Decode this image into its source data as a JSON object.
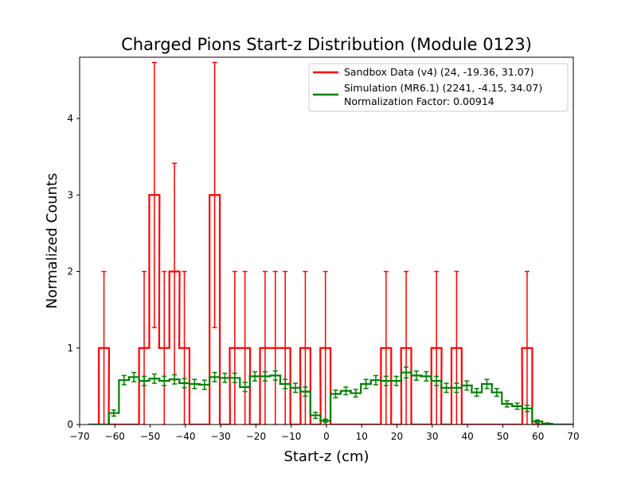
{
  "chart_data": {
    "type": "histogram-step",
    "title": "Charged Pions Start-z Distribution (Module 0123)",
    "xlabel": "Start-z (cm)",
    "ylabel": "Normalized Counts",
    "xlim": [
      -70,
      70
    ],
    "ylim": [
      0,
      4.8
    ],
    "xticks": [
      "−70",
      "−60",
      "−50",
      "−40",
      "−30",
      "−20",
      "−10",
      "0",
      "10",
      "20",
      "30",
      "40",
      "50",
      "60",
      "70"
    ],
    "xtick_values": [
      -70,
      -60,
      -50,
      -40,
      -30,
      -20,
      -10,
      0,
      10,
      20,
      30,
      40,
      50,
      60,
      70
    ],
    "yticks": [
      "0",
      "1",
      "2",
      "3",
      "4"
    ],
    "ytick_values": [
      0,
      1,
      2,
      3,
      4
    ],
    "grid": false,
    "legend_position": "top-right",
    "legend": {
      "line1": "Sandbox Data (v4) (24, -19.36, 31.07)",
      "line2": "Simulation (MR6.1) (2241, -4.15, 34.07)",
      "line3": "Normalization Factor: 0.00914"
    },
    "series": [
      {
        "name": "Sandbox Data (v4) (24, -19.36, 31.07)",
        "color": "#ff0000",
        "x": [
          -66.0,
          -63.1,
          -60.3,
          -57.4,
          -54.6,
          -51.7,
          -48.8,
          -46.0,
          -43.1,
          -40.3,
          -37.4,
          -34.6,
          -31.7,
          -28.8,
          -26.0,
          -23.1,
          -20.3,
          -17.4,
          -14.5,
          -11.7,
          -8.8,
          -6.0,
          -3.1,
          -0.3,
          2.6,
          5.5,
          8.3,
          11.2,
          14.0,
          16.9,
          19.8,
          22.6,
          25.5,
          28.3,
          31.2,
          34.0,
          36.9,
          39.8,
          42.6,
          45.5,
          48.3,
          51.2,
          54.1,
          56.9,
          59.8,
          62.6,
          65.5,
          68.4
        ],
        "values": [
          0,
          1,
          0,
          0,
          0,
          1,
          3,
          1,
          2,
          1,
          0,
          0,
          3,
          0,
          1,
          1,
          0,
          1,
          1,
          1,
          0,
          1,
          0,
          1,
          0,
          0,
          0,
          0,
          0,
          1,
          0,
          1,
          0,
          0,
          1,
          0,
          1,
          0,
          0,
          0,
          0,
          0,
          0,
          1,
          0,
          0,
          0,
          0
        ]
      },
      {
        "name": "Simulation (MR6.1) (2241, -4.15, 34.07)",
        "color": "#008000",
        "x": [
          -66.0,
          -63.1,
          -60.3,
          -57.4,
          -54.6,
          -51.7,
          -48.8,
          -46.0,
          -43.1,
          -40.3,
          -37.4,
          -34.6,
          -31.7,
          -28.8,
          -26.0,
          -23.1,
          -20.3,
          -17.4,
          -14.5,
          -11.7,
          -8.8,
          -6.0,
          -3.1,
          -0.3,
          2.6,
          5.5,
          8.3,
          11.2,
          14.0,
          16.9,
          19.8,
          22.6,
          25.5,
          28.3,
          31.2,
          34.0,
          36.9,
          39.8,
          42.6,
          45.5,
          48.3,
          51.2,
          54.1,
          56.9,
          59.8,
          62.6,
          65.5,
          68.4
        ],
        "values": [
          0,
          0,
          0.15,
          0.58,
          0.62,
          0.57,
          0.6,
          0.57,
          0.59,
          0.54,
          0.53,
          0.52,
          0.62,
          0.61,
          0.61,
          0.49,
          0.63,
          0.63,
          0.64,
          0.53,
          0.48,
          0.43,
          0.12,
          0.05,
          0.4,
          0.44,
          0.41,
          0.53,
          0.58,
          0.57,
          0.57,
          0.68,
          0.64,
          0.63,
          0.57,
          0.48,
          0.48,
          0.51,
          0.42,
          0.53,
          0.42,
          0.27,
          0.24,
          0.21,
          0.04,
          0.01,
          0,
          0
        ],
        "errors": [
          0,
          0,
          0.04,
          0.06,
          0.06,
          0.06,
          0.06,
          0.06,
          0.06,
          0.06,
          0.06,
          0.06,
          0.06,
          0.06,
          0.06,
          0.06,
          0.06,
          0.06,
          0.06,
          0.06,
          0.06,
          0.06,
          0.04,
          0.02,
          0.05,
          0.05,
          0.05,
          0.06,
          0.06,
          0.06,
          0.06,
          0.07,
          0.06,
          0.06,
          0.06,
          0.06,
          0.06,
          0.06,
          0.05,
          0.06,
          0.05,
          0.04,
          0.04,
          0.04,
          0.02,
          0.01,
          0,
          0
        ]
      }
    ]
  }
}
